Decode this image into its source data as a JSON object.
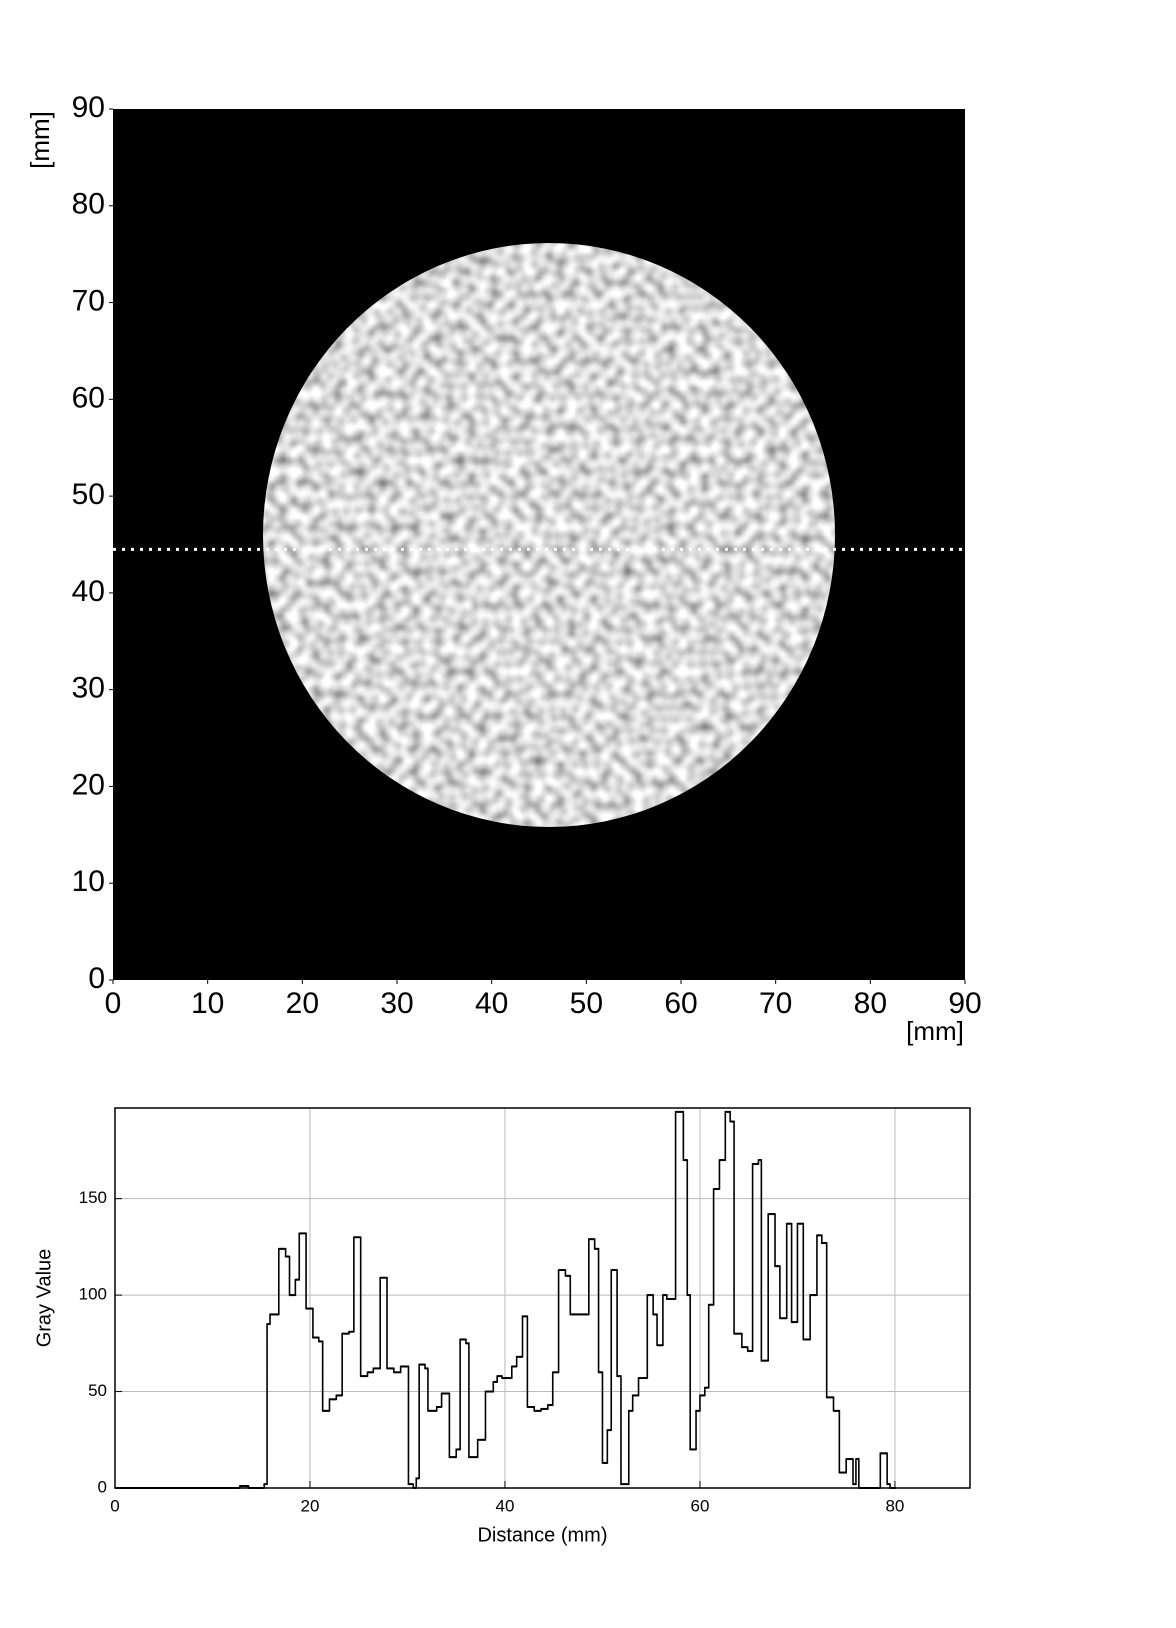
{
  "chart_data": [
    {
      "type": "image",
      "xlabel": "[mm]",
      "ylabel": "[mm]",
      "xlim": [
        0,
        90
      ],
      "ylim": [
        0,
        90
      ],
      "xticks": [
        0,
        10,
        20,
        30,
        40,
        50,
        60,
        70,
        80,
        90
      ],
      "yticks": [
        0,
        10,
        20,
        30,
        40,
        50,
        60,
        70,
        80,
        90
      ],
      "profile_y": 44.5,
      "color": "#ffffff"
    },
    {
      "type": "step",
      "xlabel": "Distance (mm)",
      "ylabel": "Gray Value",
      "xlim": [
        0,
        87.7
      ],
      "ylim": [
        0,
        197
      ],
      "xticks": [
        0,
        20,
        40,
        60,
        80
      ],
      "yticks": [
        0,
        50,
        100,
        150
      ],
      "grid": true,
      "color": "#000000",
      "x": [
        0,
        12.8,
        13.7,
        15.3,
        15.6,
        15.9,
        16.8,
        17.5,
        17.9,
        18.5,
        18.9,
        19.6,
        20.3,
        20.9,
        21.3,
        22,
        22.7,
        23.3,
        24,
        24.5,
        25.2,
        25.9,
        26.5,
        27.2,
        27.9,
        28.6,
        29.3,
        30.1,
        30.6,
        30.9,
        31.2,
        31.8,
        32.1,
        33,
        33.5,
        34.3,
        35,
        35.4,
        36,
        36.3,
        37.2,
        38,
        38.8,
        39.2,
        39.7,
        40.7,
        41.2,
        41.8,
        42.3,
        43,
        43.7,
        44.4,
        44.9,
        45.5,
        46.2,
        46.7,
        48.6,
        49.2,
        49.6,
        50,
        50.5,
        50.9,
        51.5,
        51.9,
        52.7,
        53.1,
        53.7,
        54.6,
        55.2,
        55.6,
        56.2,
        56.6,
        57.5,
        58.3,
        58.7,
        59,
        59.6,
        60,
        60.5,
        60.9,
        61.4,
        62,
        62.6,
        63.1,
        63.5,
        64.3,
        64.9,
        65.4,
        66,
        66.3,
        67,
        67.7,
        68.2,
        68.9,
        69.4,
        70,
        70.6,
        71.3,
        72,
        72.5,
        73,
        73.7,
        74.3,
        75,
        75.7,
        76,
        76.3,
        78.5,
        79.2,
        79.5
      ],
      "values": [
        0,
        1,
        0,
        2,
        85,
        90,
        124,
        120,
        100,
        108,
        132,
        93,
        78,
        76,
        40,
        46,
        48,
        80,
        81,
        130,
        58,
        60,
        62,
        109,
        62,
        60,
        63,
        2,
        0,
        5,
        64,
        62,
        40,
        42,
        49,
        16,
        20,
        77,
        75,
        16,
        25,
        50,
        55,
        58,
        57,
        63,
        68,
        89,
        42,
        40,
        41,
        43,
        60,
        113,
        110,
        90,
        129,
        124,
        60,
        13,
        30,
        113,
        58,
        2,
        40,
        48,
        57,
        100,
        90,
        74,
        100,
        98,
        195,
        170,
        100,
        20,
        40,
        48,
        52,
        95,
        155,
        170,
        195,
        190,
        80,
        73,
        71,
        168,
        170,
        66,
        142,
        115,
        88,
        137,
        86,
        137,
        77,
        100,
        131,
        127,
        47,
        40,
        8,
        15,
        2,
        15,
        0,
        18,
        2,
        0
      ]
    }
  ]
}
